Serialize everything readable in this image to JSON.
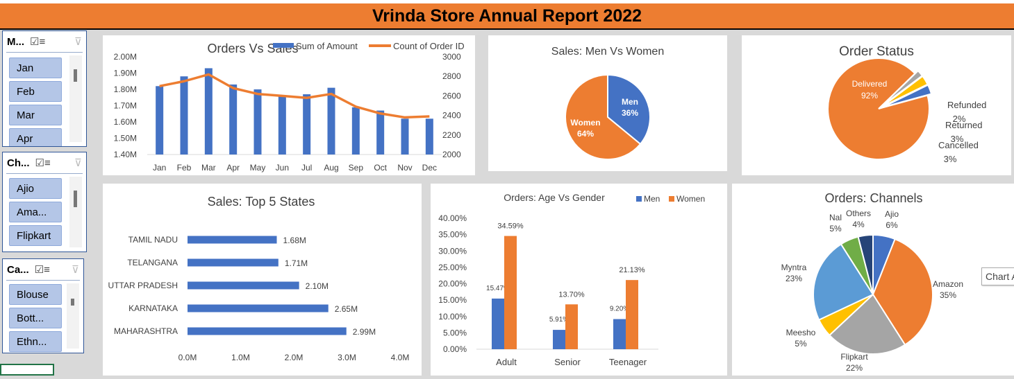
{
  "report_title": "Vrinda Store Annual Report 2022",
  "slicers": [
    {
      "title": "M...",
      "items": [
        "Jan",
        "Feb",
        "Mar",
        "Apr"
      ]
    },
    {
      "title": "Ch...",
      "items": [
        "Ajio",
        "Ama...",
        "Flipkart"
      ]
    },
    {
      "title": "Ca...",
      "items": [
        "Blouse",
        "Bott...",
        "Ethn..."
      ]
    }
  ],
  "tooltip": "Chart A",
  "chart_data": [
    {
      "id": "orders_vs_sales",
      "type": "bar+line",
      "title": "Orders Vs Sales",
      "categories": [
        "Jan",
        "Feb",
        "Mar",
        "Apr",
        "May",
        "Jun",
        "Jul",
        "Aug",
        "Sep",
        "Oct",
        "Nov",
        "Dec"
      ],
      "series": [
        {
          "name": "Sum of Amount",
          "type": "bar",
          "axis": "left",
          "color": "#4472c4",
          "values": [
            1.82,
            1.88,
            1.93,
            1.83,
            1.8,
            1.76,
            1.77,
            1.81,
            1.69,
            1.67,
            1.62,
            1.62
          ]
        },
        {
          "name": "Count of Order ID",
          "type": "line",
          "axis": "right",
          "color": "#ed7d31",
          "values": [
            2700,
            2750,
            2820,
            2680,
            2620,
            2600,
            2580,
            2620,
            2490,
            2420,
            2380,
            2390
          ]
        }
      ],
      "left_axis": {
        "min": 1.4,
        "max": 2.0,
        "ticks": [
          "1.40M",
          "1.50M",
          "1.60M",
          "1.70M",
          "1.80M",
          "1.90M",
          "2.00M"
        ]
      },
      "right_axis": {
        "min": 2000,
        "max": 3000,
        "ticks": [
          "2000",
          "2200",
          "2400",
          "2600",
          "2800",
          "3000"
        ]
      },
      "legend": "top"
    },
    {
      "id": "men_vs_women",
      "type": "pie",
      "title": "Sales: Men Vs Women",
      "slices": [
        {
          "label": "Men",
          "pct_label": "36%",
          "value": 36,
          "color": "#4472c4"
        },
        {
          "label": "Women",
          "pct_label": "64%",
          "value": 64,
          "color": "#ed7d31"
        }
      ]
    },
    {
      "id": "order_status",
      "type": "pie",
      "title": "Order Status",
      "slices": [
        {
          "label": "Delivered",
          "pct_label": "92%",
          "value": 92,
          "color": "#ed7d31"
        },
        {
          "label": "Refunded",
          "pct_label": "2%",
          "value": 2,
          "color": "#a5a5a5"
        },
        {
          "label": "Returned",
          "pct_label": "3%",
          "value": 3,
          "color": "#ffc000"
        },
        {
          "label": "Cancelled",
          "pct_label": "3%",
          "value": 3,
          "color": "#4472c4"
        }
      ]
    },
    {
      "id": "top5_states",
      "type": "bar",
      "orientation": "horizontal",
      "title": "Sales: Top 5 States",
      "categories": [
        "TAMIL NADU",
        "TELANGANA",
        "UTTAR PRADESH",
        "KARNATAKA",
        "MAHARASHTRA"
      ],
      "values": [
        1.68,
        1.71,
        2.1,
        2.65,
        2.99
      ],
      "value_labels": [
        "1.68M",
        "1.71M",
        "2.10M",
        "2.65M",
        "2.99M"
      ],
      "xlim": [
        0,
        4
      ],
      "ticks": [
        "0.0M",
        "1.0M",
        "2.0M",
        "3.0M",
        "4.0M"
      ],
      "color": "#4472c4"
    },
    {
      "id": "age_vs_gender",
      "type": "bar",
      "title": "Orders: Age Vs Gender",
      "categories": [
        "Adult",
        "Senior",
        "Teenager"
      ],
      "series": [
        {
          "name": "Men",
          "color": "#4472c4",
          "values": [
            15.47,
            5.91,
            9.2
          ],
          "labels": [
            "15.47%",
            "5.91%",
            "9.20%"
          ]
        },
        {
          "name": "Women",
          "color": "#ed7d31",
          "values": [
            34.59,
            13.7,
            21.13
          ],
          "labels": [
            "34.59%",
            "13.70%",
            "21.13%"
          ]
        }
      ],
      "ylim": [
        0,
        40
      ],
      "ticks": [
        "0.00%",
        "5.00%",
        "10.00%",
        "15.00%",
        "20.00%",
        "25.00%",
        "30.00%",
        "35.00%",
        "40.00%"
      ],
      "legend": "top-right"
    },
    {
      "id": "channels",
      "type": "pie",
      "title": "Orders: Channels",
      "slices": [
        {
          "label": "Ajio",
          "pct_label": "6%",
          "value": 6,
          "color": "#4472c4"
        },
        {
          "label": "Amazon",
          "pct_label": "35%",
          "value": 35,
          "color": "#ed7d31"
        },
        {
          "label": "Flipkart",
          "pct_label": "22%",
          "value": 22,
          "color": "#a5a5a5"
        },
        {
          "label": "Meesho",
          "pct_label": "5%",
          "value": 5,
          "color": "#ffc000"
        },
        {
          "label": "Myntra",
          "pct_label": "23%",
          "value": 23,
          "color": "#5b9bd5"
        },
        {
          "label": "Nal",
          "pct_label": "5%",
          "value": 5,
          "color": "#70ad47"
        },
        {
          "label": "Others",
          "pct_label": "4%",
          "value": 4,
          "color": "#264478"
        }
      ]
    }
  ]
}
